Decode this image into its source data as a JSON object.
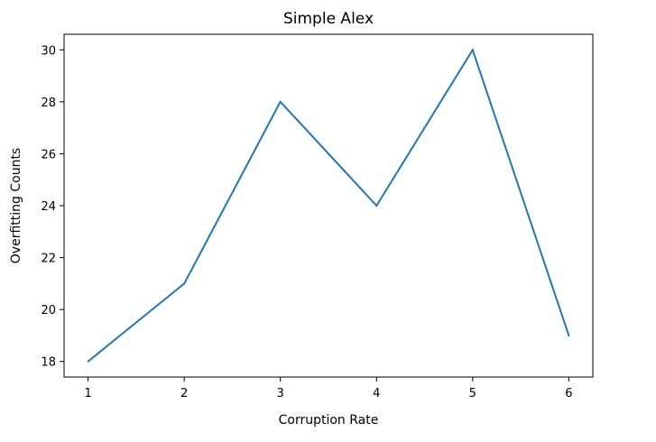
{
  "chart_data": {
    "type": "line",
    "title": "Simple Alex",
    "xlabel": "Corruption Rate",
    "ylabel": "Overfitting Counts",
    "x": [
      1,
      2,
      3,
      4,
      5,
      6
    ],
    "series": [
      {
        "values": [
          18,
          21,
          28,
          24,
          30,
          19
        ],
        "color": "#1f77b4"
      }
    ],
    "xticks": [
      1,
      2,
      3,
      4,
      5,
      6
    ],
    "yticks": [
      18,
      20,
      22,
      24,
      26,
      28,
      30
    ],
    "xlim": [
      0.75,
      6.25
    ],
    "ylim": [
      17.4,
      30.6
    ],
    "grid": false,
    "legend": "none"
  }
}
